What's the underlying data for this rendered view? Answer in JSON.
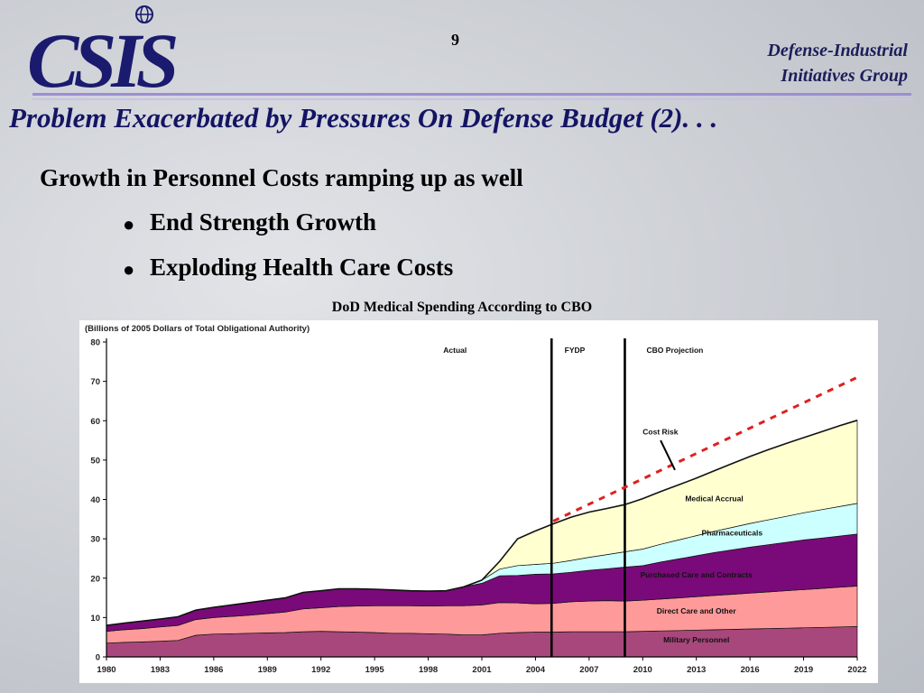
{
  "header": {
    "logo_text": "CSIS",
    "page_number": "9",
    "org_line1": "Defense-Industrial",
    "org_line2": "Initiatives Group"
  },
  "slide": {
    "title": "Problem Exacerbated by Pressures On Defense Budget (2). . .",
    "subtitle": "Growth in Personnel Costs ramping up as well",
    "bullets": [
      "End Strength Growth",
      "Exploding Health Care Costs"
    ],
    "chart_caption": "DoD Medical Spending According to CBO"
  },
  "colors": {
    "military_personnel": "#a8477b",
    "direct_care": "#ff9a9a",
    "purchased_care": "#7a0a7a",
    "pharmaceuticals": "#ccffff",
    "medical_accrual": "#ffffd0",
    "cost_risk": "#e02020",
    "title_text": "#141464"
  },
  "chart_data": {
    "type": "area",
    "stacked": true,
    "title": "(Billions of 2005 Dollars of Total Obligational Authority)",
    "ylim": [
      0,
      80
    ],
    "yticks": [
      0,
      10,
      20,
      30,
      40,
      50,
      60,
      70,
      80
    ],
    "xlim": [
      1980,
      2022
    ],
    "xticks": [
      1980,
      1983,
      1986,
      1989,
      1992,
      1995,
      1998,
      2001,
      2004,
      2007,
      2010,
      2013,
      2016,
      2019,
      2022
    ],
    "grid": false,
    "x": [
      1980,
      1981,
      1982,
      1983,
      1984,
      1985,
      1986,
      1987,
      1988,
      1989,
      1990,
      1991,
      1992,
      1993,
      1994,
      1995,
      1996,
      1997,
      1998,
      1999,
      2000,
      2001,
      2002,
      2003,
      2004,
      2005,
      2006,
      2007,
      2008,
      2009,
      2010,
      2011,
      2012,
      2013,
      2014,
      2015,
      2016,
      2017,
      2018,
      2019,
      2020,
      2021,
      2022
    ],
    "series": [
      {
        "name": "Military Personnel",
        "values": [
          3.5,
          3.7,
          3.8,
          4,
          4.2,
          5.5,
          5.8,
          5.9,
          6,
          6.1,
          6.2,
          6.4,
          6.5,
          6.4,
          6.3,
          6.2,
          6,
          6,
          5.9,
          5.8,
          5.6,
          5.6,
          6,
          6.2,
          6.3,
          6.3,
          6.4,
          6.4,
          6.4,
          6.4,
          6.5,
          6.6,
          6.7,
          6.8,
          6.9,
          7,
          7.1,
          7.2,
          7.3,
          7.4,
          7.5,
          7.6,
          7.7
        ]
      },
      {
        "name": "Direct Care and Other",
        "values": [
          3,
          3.2,
          3.4,
          3.6,
          3.8,
          4,
          4.2,
          4.4,
          4.6,
          4.9,
          5.2,
          5.8,
          6,
          6.4,
          6.6,
          6.8,
          7,
          7,
          7,
          7.2,
          7.4,
          7.6,
          7.8,
          7.5,
          7.2,
          7.3,
          7.6,
          7.8,
          7.9,
          7.8,
          7.9,
          8.1,
          8.3,
          8.5,
          8.7,
          8.9,
          9.1,
          9.3,
          9.5,
          9.7,
          9.9,
          10.1,
          10.3
        ]
      },
      {
        "name": "Purchased Care and Contracts",
        "values": [
          1.5,
          1.7,
          1.9,
          2,
          2.2,
          2.4,
          2.6,
          2.9,
          3.2,
          3.4,
          3.6,
          4.2,
          4.3,
          4.5,
          4.4,
          4.2,
          4,
          3.8,
          3.8,
          3.8,
          4.8,
          5.5,
          6.8,
          7,
          7.5,
          7.5,
          7.5,
          7.8,
          8.1,
          8.6,
          8.8,
          9.4,
          9.9,
          10.4,
          10.9,
          11.3,
          11.7,
          12,
          12.3,
          12.6,
          12.8,
          13,
          13.2
        ]
      },
      {
        "name": "Pharmaceuticals",
        "values": [
          0,
          0,
          0,
          0,
          0,
          0,
          0,
          0,
          0,
          0,
          0,
          0,
          0,
          0,
          0,
          0,
          0,
          0,
          0,
          0,
          0,
          0.8,
          1.7,
          2.5,
          2.5,
          2.7,
          3,
          3.3,
          3.6,
          3.9,
          4.2,
          4.5,
          4.8,
          5.1,
          5.4,
          5.7,
          6,
          6.3,
          6.6,
          6.9,
          7.2,
          7.5,
          7.8
        ]
      },
      {
        "name": "Medical Accrual",
        "values": [
          0,
          0,
          0,
          0,
          0,
          0,
          0,
          0,
          0,
          0,
          0,
          0,
          0,
          0,
          0,
          0,
          0,
          0,
          0,
          0,
          0,
          0,
          2,
          6.8,
          8.5,
          10,
          11,
          11.5,
          11.7,
          12,
          12.8,
          13.4,
          14,
          14.6,
          15.4,
          16.2,
          17,
          17.8,
          18.5,
          19.1,
          19.8,
          20.5,
          21.1
        ]
      }
    ],
    "cost_risk": {
      "label": "Cost Risk",
      "x": [
        2005,
        2022
      ],
      "y": [
        34.5,
        71
      ]
    },
    "period_dividers": [
      2004.9,
      2009.0
    ],
    "period_labels": [
      "Actual",
      "FYDP",
      "CBO Projection"
    ]
  }
}
